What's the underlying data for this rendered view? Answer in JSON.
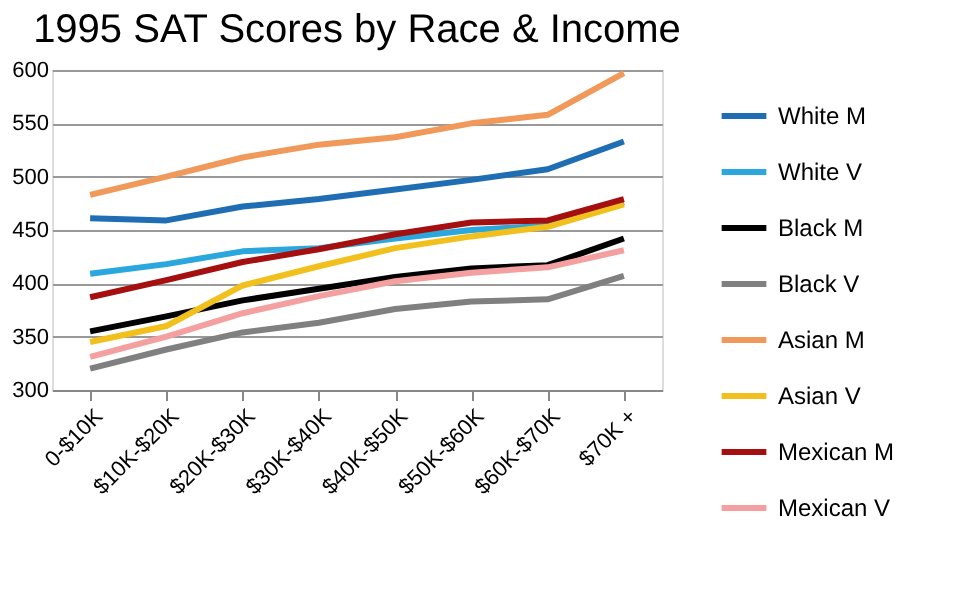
{
  "chart_data": {
    "type": "line",
    "title": "1995 SAT Scores by Race & Income",
    "categories": [
      "0-$10K",
      "$10K-$20K",
      "$20K-$30K",
      "$30K-$40K",
      "$40K-$50K",
      "$50K-$60K",
      "$60K-$70K",
      "$70K +"
    ],
    "series": [
      {
        "name": "White M",
        "color": "#1f6eb4",
        "values": [
          461,
          459,
          472,
          479,
          488,
          497,
          507,
          533
        ]
      },
      {
        "name": "White V",
        "color": "#2aa7dc",
        "values": [
          409,
          418,
          430,
          433,
          442,
          450,
          454,
          476
        ]
      },
      {
        "name": "Black M",
        "color": "#000000",
        "values": [
          355,
          369,
          384,
          395,
          406,
          414,
          417,
          442
        ]
      },
      {
        "name": "Black V",
        "color": "#808080",
        "values": [
          320,
          338,
          354,
          363,
          376,
          383,
          385,
          407
        ]
      },
      {
        "name": "Asian M",
        "color": "#f0995a",
        "values": [
          483,
          500,
          518,
          530,
          537,
          550,
          558,
          597
        ]
      },
      {
        "name": "Asian V",
        "color": "#f2c01d",
        "values": [
          345,
          360,
          398,
          416,
          433,
          444,
          453,
          474
        ]
      },
      {
        "name": "Mexican M",
        "color": "#a50f0f",
        "values": [
          387,
          403,
          420,
          432,
          446,
          457,
          459,
          479
        ]
      },
      {
        "name": "Mexican V",
        "color": "#f4a0a0",
        "values": [
          331,
          350,
          372,
          388,
          402,
          410,
          415,
          431
        ]
      }
    ],
    "ylim": [
      300,
      600
    ],
    "yticks": [
      300,
      350,
      400,
      450,
      500,
      550,
      600
    ],
    "grid": "y",
    "legend": "right",
    "marker": "none",
    "line_style": "solid"
  }
}
